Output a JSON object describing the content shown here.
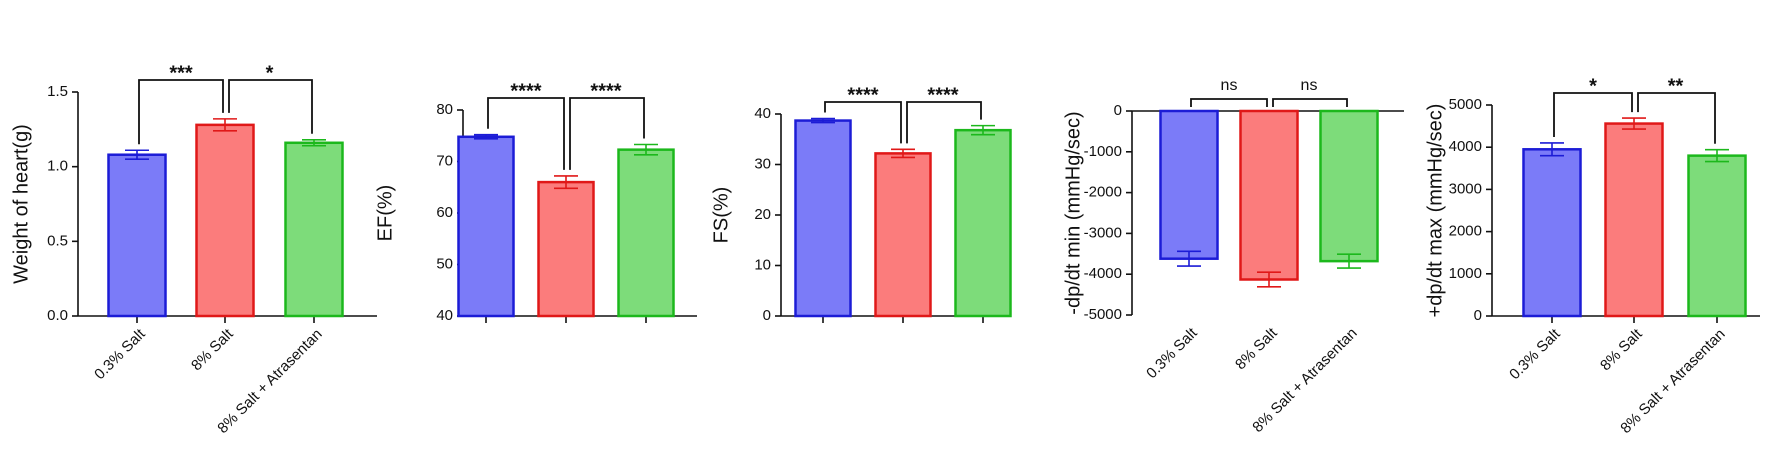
{
  "chart_data": [
    {
      "type": "bar",
      "ylabel": "Weight of heart(g)",
      "categories": [
        "0.3% Salt",
        "8% Salt",
        "8% Salt + Atrasentan"
      ],
      "values": [
        1.08,
        1.28,
        1.16
      ],
      "errors": [
        0.03,
        0.04,
        0.02
      ],
      "colors": [
        "#7b7bf8",
        "#fb7c7c",
        "#7ddc7a"
      ],
      "edgecolors": [
        "#1c1cd6",
        "#e01818",
        "#1cb81c"
      ],
      "ylim": [
        0,
        1.5
      ],
      "yticks": [
        {
          "value": 0,
          "label": "0.0"
        },
        0.5,
        {
          "value": 1,
          "label": "1.0"
        },
        1.5
      ],
      "annotations": [
        {
          "from": 0,
          "to": 1,
          "text": "***"
        },
        {
          "from": 1,
          "to": 2,
          "text": "*"
        }
      ]
    },
    {
      "type": "bar",
      "ylabel": "EF(%)",
      "values": [
        74.8,
        66.0,
        72.3
      ],
      "errors": [
        0.4,
        1.2,
        1.0
      ],
      "colors": [
        "#7b7bf8",
        "#fb7c7c",
        "#7ddc7a"
      ],
      "edgecolors": [
        "#1c1cd6",
        "#e01818",
        "#1cb81c"
      ],
      "ylim": [
        40,
        80
      ],
      "yticks": [
        40,
        50,
        60,
        70,
        80
      ],
      "annotations": [
        {
          "from": 0,
          "to": 1,
          "text": "****"
        },
        {
          "from": 1,
          "to": 2,
          "text": "****"
        }
      ]
    },
    {
      "type": "bar",
      "ylabel": "FS(%)",
      "values": [
        38.7,
        32.2,
        36.8
      ],
      "errors": [
        0.4,
        0.8,
        0.9
      ],
      "colors": [
        "#7b7bf8",
        "#fb7c7c",
        "#7ddc7a"
      ],
      "edgecolors": [
        "#1c1cd6",
        "#e01818",
        "#1cb81c"
      ],
      "ylim": [
        0,
        40
      ],
      "yticks": [
        0,
        10,
        20,
        30,
        40
      ],
      "annotations": [
        {
          "from": 0,
          "to": 1,
          "text": "****"
        },
        {
          "from": 1,
          "to": 2,
          "text": "****"
        }
      ]
    },
    {
      "type": "bar",
      "ylabel": "-dp/dt min (mmHg/sec)",
      "categories": [
        "0.3% Salt",
        "8% Salt",
        "8% Salt + Atrasentan"
      ],
      "values": [
        -3620,
        -4130,
        -3680
      ],
      "errors": [
        180,
        180,
        170
      ],
      "colors": [
        "#7b7bf8",
        "#fb7c7c",
        "#7ddc7a"
      ],
      "edgecolors": [
        "#1c1cd6",
        "#e01818",
        "#1cb81c"
      ],
      "ylim": [
        -5000,
        0
      ],
      "yticks": [
        -5000,
        -4000,
        -3000,
        -2000,
        -1000,
        0
      ],
      "annotations": [
        {
          "from": 0,
          "to": 1,
          "text": "ns"
        },
        {
          "from": 1,
          "to": 2,
          "text": "ns"
        }
      ]
    },
    {
      "type": "bar",
      "ylabel": "+dp/dt max (mmHg/sec)",
      "categories": [
        "0.3% Salt",
        "8% Salt",
        "8% Salt + Atrasentan"
      ],
      "values": [
        3950,
        4560,
        3800
      ],
      "errors": [
        150,
        130,
        140
      ],
      "colors": [
        "#7b7bf8",
        "#fb7c7c",
        "#7ddc7a"
      ],
      "edgecolors": [
        "#1c1cd6",
        "#e01818",
        "#1cb81c"
      ],
      "ylim": [
        0,
        5000
      ],
      "yticks": [
        0,
        1000,
        2000,
        3000,
        4000,
        5000
      ],
      "annotations": [
        {
          "from": 0,
          "to": 1,
          "text": "*"
        },
        {
          "from": 1,
          "to": 2,
          "text": "**"
        }
      ]
    }
  ]
}
